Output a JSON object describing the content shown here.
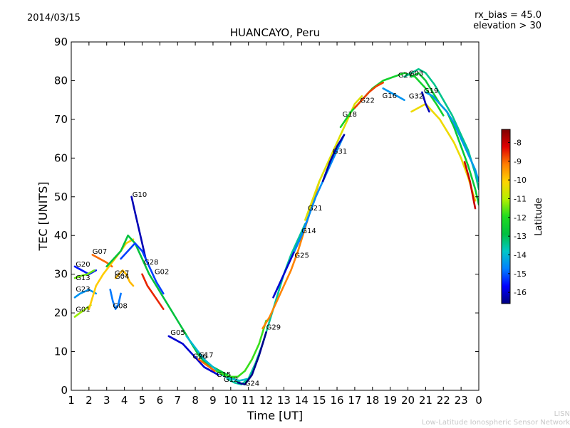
{
  "header": {
    "date": "2014/03/15",
    "rx_bias": "rx_bias = 45.0",
    "elevation": "elevation > 30"
  },
  "footer": {
    "credit_short": "LISN",
    "credit_long": "Low-Latitude Ionospheric Sensor Network"
  },
  "colorbar": {
    "label": "Latitude",
    "ticks": [
      "-8",
      "-9",
      "-10",
      "-11",
      "-12",
      "-13",
      "-14",
      "-15",
      "-16"
    ],
    "range": [
      -16.6,
      -7.3
    ],
    "stops": [
      "#00007f",
      "#0000ff",
      "#0080ff",
      "#00c8c8",
      "#00c040",
      "#20dc20",
      "#b4f000",
      "#ffd400",
      "#ff7f00",
      "#e00000",
      "#7f0000"
    ]
  },
  "chart_data": {
    "type": "scatter",
    "title": "HUANCAYO, Peru",
    "xlabel": "Time [UT]",
    "ylabel": "TEC [UNITS]",
    "xlim": [
      1,
      24
    ],
    "ylim": [
      0,
      90
    ],
    "xticks": [
      1,
      2,
      3,
      4,
      5,
      6,
      7,
      8,
      9,
      10,
      11,
      12,
      13,
      14,
      15,
      16,
      17,
      18,
      19,
      20,
      21,
      22,
      23,
      24
    ],
    "xtick_labels": [
      "1",
      "2",
      "3",
      "4",
      "5",
      "6",
      "7",
      "8",
      "9",
      "10",
      "11",
      "12",
      "13",
      "14",
      "15",
      "16",
      "17",
      "18",
      "19",
      "20",
      "21",
      "22",
      "23",
      "0"
    ],
    "yticks": [
      0,
      10,
      20,
      30,
      40,
      50,
      60,
      70,
      80,
      90
    ],
    "ytick_labels": [
      "0",
      "10",
      "20",
      "30",
      "40",
      "50",
      "60",
      "70",
      "80",
      "90"
    ],
    "series": [
      {
        "name": "G20",
        "lat": -15.5,
        "x": [
          1.2,
          1.6,
          2.0,
          2.4
        ],
        "y": [
          32,
          31,
          30,
          31
        ]
      },
      {
        "name": "G13",
        "lat": -11.5,
        "x": [
          1.2,
          1.5,
          1.9,
          2.3
        ],
        "y": [
          29,
          29.5,
          30,
          31
        ]
      },
      {
        "name": "G23",
        "lat": -14.5,
        "x": [
          1.2,
          1.5,
          2.0,
          2.4
        ],
        "y": [
          24,
          25,
          26,
          25
        ]
      },
      {
        "name": "G01",
        "lat": -11.2,
        "x": [
          1.2,
          1.5,
          1.8,
          2.1
        ],
        "y": [
          19,
          20,
          21,
          22
        ]
      },
      {
        "name": "G07",
        "lat": -9.0,
        "x": [
          2.2,
          2.6,
          3.0,
          3.3
        ],
        "y": [
          35,
          34,
          33,
          32
        ]
      },
      {
        "name": "G24a",
        "lat": -10.0,
        "x": [
          2.0,
          2.4,
          2.8,
          3.3,
          3.8,
          4.1,
          4.5
        ],
        "y": [
          21,
          27,
          30,
          33,
          36,
          38,
          39
        ]
      },
      {
        "name": "G27",
        "lat": -12.8,
        "x": [
          3.0,
          3.4,
          3.8,
          4.2,
          4.6,
          5.0,
          5.4,
          5.8,
          6.2,
          6.6,
          7.0,
          7.4,
          7.8,
          8.2,
          8.6,
          9.0,
          9.4,
          9.8,
          10.2,
          10.5
        ],
        "y": [
          32,
          34,
          36,
          40,
          38,
          34,
          30,
          27,
          24,
          21,
          18,
          15,
          12,
          9,
          7,
          6,
          5,
          4,
          3,
          2
        ]
      },
      {
        "name": "G08",
        "lat": -14.8,
        "x": [
          3.2,
          3.35,
          3.5,
          3.65,
          3.8
        ],
        "y": [
          26,
          23,
          21,
          22,
          25
        ]
      },
      {
        "name": "G04",
        "lat": -9.8,
        "x": [
          3.5,
          3.7,
          3.9,
          4.1,
          4.3,
          4.5
        ],
        "y": [
          29,
          30,
          31,
          30,
          28,
          27
        ]
      },
      {
        "name": "G10",
        "lat": -16.2,
        "x": [
          4.4,
          4.6,
          4.8,
          5.0,
          5.2
        ],
        "y": [
          50,
          46,
          42,
          38,
          34
        ]
      },
      {
        "name": "G28",
        "lat": -15.2,
        "x": [
          3.8,
          4.2,
          4.6,
          5.0,
          5.4,
          5.8,
          6.2
        ],
        "y": [
          34,
          36,
          38,
          36,
          32,
          28,
          25
        ]
      },
      {
        "name": "G02",
        "lat": -8.5,
        "x": [
          5.0,
          5.3,
          5.6,
          5.9,
          6.2
        ],
        "y": [
          30,
          27,
          25,
          23,
          21
        ]
      },
      {
        "name": "G05",
        "lat": -16.0,
        "x": [
          6.5,
          6.9,
          7.3,
          7.7,
          8.1,
          8.5,
          8.9,
          9.3
        ],
        "y": [
          14,
          13,
          12,
          10,
          8,
          6,
          5,
          4
        ]
      },
      {
        "name": "G26",
        "lat": -14.0,
        "x": [
          7.5,
          8.0,
          8.5,
          9.0,
          9.5,
          10.0,
          10.5,
          11.0
        ],
        "y": [
          14,
          11,
          8,
          6,
          4,
          3,
          2.5,
          3
        ]
      },
      {
        "name": "G17",
        "lat": -9.0,
        "x": [
          8.2,
          8.5,
          8.8,
          9.1
        ],
        "y": [
          8,
          7,
          6,
          5
        ]
      },
      {
        "name": "G15",
        "lat": -11.8,
        "x": [
          9.2,
          9.6,
          10.0,
          10.4,
          10.8,
          11.2,
          11.6,
          12.0
        ],
        "y": [
          5,
          4,
          3.5,
          3.5,
          5,
          8,
          12,
          18
        ]
      },
      {
        "name": "G12",
        "lat": -13.5,
        "x": [
          9.8,
          10.2,
          10.6,
          11.0,
          11.4,
          11.8,
          12.2,
          12.6,
          13.0,
          13.4,
          13.8,
          14.2
        ],
        "y": [
          3,
          2,
          1.5,
          3,
          7,
          12,
          18,
          24,
          30,
          35,
          39,
          43
        ]
      },
      {
        "name": "G24",
        "lat": -16.5,
        "x": [
          10.4,
          10.8,
          11.2,
          11.6,
          12.0
        ],
        "y": [
          2,
          1.5,
          4,
          9,
          15
        ]
      },
      {
        "name": "G29",
        "lat": -9.2,
        "x": [
          11.8,
          12.2,
          12.6,
          13.0,
          13.4,
          13.8,
          14.2,
          14.6,
          15.0
        ],
        "y": [
          16,
          19,
          23,
          27,
          31,
          36,
          42,
          48,
          54
        ]
      },
      {
        "name": "G25",
        "lat": -16.0,
        "x": [
          12.4,
          12.8,
          13.2,
          13.6,
          14.0,
          14.4
        ],
        "y": [
          24,
          28,
          32,
          36,
          40,
          45
        ]
      },
      {
        "name": "G14",
        "lat": -14.6,
        "x": [
          13.6,
          14.0,
          14.4,
          14.8,
          15.2,
          15.6,
          16.0,
          16.4
        ],
        "y": [
          36,
          40,
          45,
          50,
          54,
          58,
          62,
          66
        ]
      },
      {
        "name": "G21",
        "lat": -10.5,
        "x": [
          14.2,
          14.6,
          15.0,
          15.4,
          15.8,
          16.2,
          16.6,
          17.0,
          17.4
        ],
        "y": [
          44,
          49,
          54,
          58,
          62,
          66,
          70,
          74,
          76
        ]
      },
      {
        "name": "G31",
        "lat": -16.3,
        "x": [
          15.2,
          15.6,
          16.0,
          16.4
        ],
        "y": [
          54,
          59,
          63,
          66
        ]
      },
      {
        "name": "G18",
        "lat": -12.3,
        "x": [
          16.2,
          16.8,
          17.4,
          18.0,
          18.6,
          19.2,
          19.8,
          20.4,
          21.0,
          21.6,
          22.0
        ],
        "y": [
          68,
          72,
          75,
          78,
          80,
          81,
          82,
          81,
          78,
          74,
          71
        ]
      },
      {
        "name": "G22",
        "lat": -8.7,
        "x": [
          17.0,
          17.4,
          17.8,
          18.2,
          18.6
        ],
        "y": [
          73,
          75,
          77,
          78.5,
          79.5
        ]
      },
      {
        "name": "G16",
        "lat": -14.5,
        "x": [
          18.6,
          19.0,
          19.4,
          19.8
        ],
        "y": [
          78,
          77,
          76,
          75
        ]
      },
      {
        "name": "G27b",
        "lat": -13.4,
        "x": [
          19.8,
          20.2,
          20.6,
          21.0,
          21.5,
          22.0,
          22.5,
          23.0,
          23.4,
          23.8,
          24.0
        ],
        "y": [
          81,
          82,
          83,
          82,
          79,
          75,
          71,
          66,
          62,
          56,
          52
        ]
      },
      {
        "name": "G03",
        "lat": -12.6,
        "x": [
          20.2,
          20.6,
          21.0,
          21.4,
          21.8,
          22.2,
          22.6,
          23.0,
          23.4,
          23.8,
          24.0
        ],
        "y": [
          81,
          82,
          80,
          77,
          74,
          72,
          68,
          63,
          58,
          52,
          48
        ]
      },
      {
        "name": "G19",
        "lat": -14.4,
        "x": [
          21.0,
          21.4,
          21.8,
          22.2,
          22.6,
          23.0,
          23.4,
          23.8,
          24.0
        ],
        "y": [
          77,
          76,
          74,
          72,
          69,
          65,
          61,
          57,
          54
        ]
      },
      {
        "name": "G32",
        "lat": -10.3,
        "x": [
          20.2,
          20.6,
          21.0,
          21.4,
          21.8,
          22.2,
          22.6,
          23.0,
          23.4,
          23.8
        ],
        "y": [
          72,
          73,
          74,
          72,
          70,
          67,
          64,
          60,
          55,
          49
        ]
      },
      {
        "name": "G32b",
        "lat": -8.0,
        "x": [
          23.2,
          23.5,
          23.8
        ],
        "y": [
          59,
          54,
          47
        ]
      },
      {
        "name": "G22b",
        "lat": -16.2,
        "x": [
          20.8,
          21.0,
          21.2
        ],
        "y": [
          77,
          74,
          72
        ]
      }
    ],
    "labels": [
      {
        "text": "G20",
        "x": 1.25,
        "y": 32
      },
      {
        "text": "G07",
        "x": 2.2,
        "y": 35.3
      },
      {
        "text": "G13",
        "x": 1.25,
        "y": 28.5
      },
      {
        "text": "G23",
        "x": 1.25,
        "y": 25.5
      },
      {
        "text": "G01",
        "x": 1.25,
        "y": 20.3
      },
      {
        "text": "G27",
        "x": 3.45,
        "y": 29.7
      },
      {
        "text": "G04",
        "x": 3.45,
        "y": 28.8
      },
      {
        "text": "G08",
        "x": 3.35,
        "y": 21.2
      },
      {
        "text": "G10",
        "x": 4.45,
        "y": 50
      },
      {
        "text": "G28",
        "x": 5.1,
        "y": 32.5
      },
      {
        "text": "G02",
        "x": 5.7,
        "y": 30
      },
      {
        "text": "G05",
        "x": 6.6,
        "y": 14.3
      },
      {
        "text": "G26",
        "x": 7.85,
        "y": 8.2
      },
      {
        "text": "G17",
        "x": 8.2,
        "y": 8.5
      },
      {
        "text": "G15",
        "x": 9.2,
        "y": 3.5
      },
      {
        "text": "G12",
        "x": 9.6,
        "y": 2.2
      },
      {
        "text": "G24",
        "x": 10.8,
        "y": 1.2
      },
      {
        "text": "G29",
        "x": 12.0,
        "y": 15.7
      },
      {
        "text": "G25",
        "x": 13.6,
        "y": 34.3
      },
      {
        "text": "G14",
        "x": 14.0,
        "y": 40.6
      },
      {
        "text": "G21",
        "x": 14.35,
        "y": 46.5
      },
      {
        "text": "G31",
        "x": 15.75,
        "y": 61.2
      },
      {
        "text": "G18",
        "x": 16.3,
        "y": 70.7
      },
      {
        "text": "G22",
        "x": 17.3,
        "y": 74.3
      },
      {
        "text": "G16",
        "x": 18.55,
        "y": 75.5
      },
      {
        "text": "G27",
        "x": 19.45,
        "y": 80.8
      },
      {
        "text": "G03",
        "x": 20.05,
        "y": 81.3
      },
      {
        "text": "G19",
        "x": 20.9,
        "y": 76.8
      },
      {
        "text": "G32",
        "x": 20.05,
        "y": 75.4
      }
    ]
  }
}
